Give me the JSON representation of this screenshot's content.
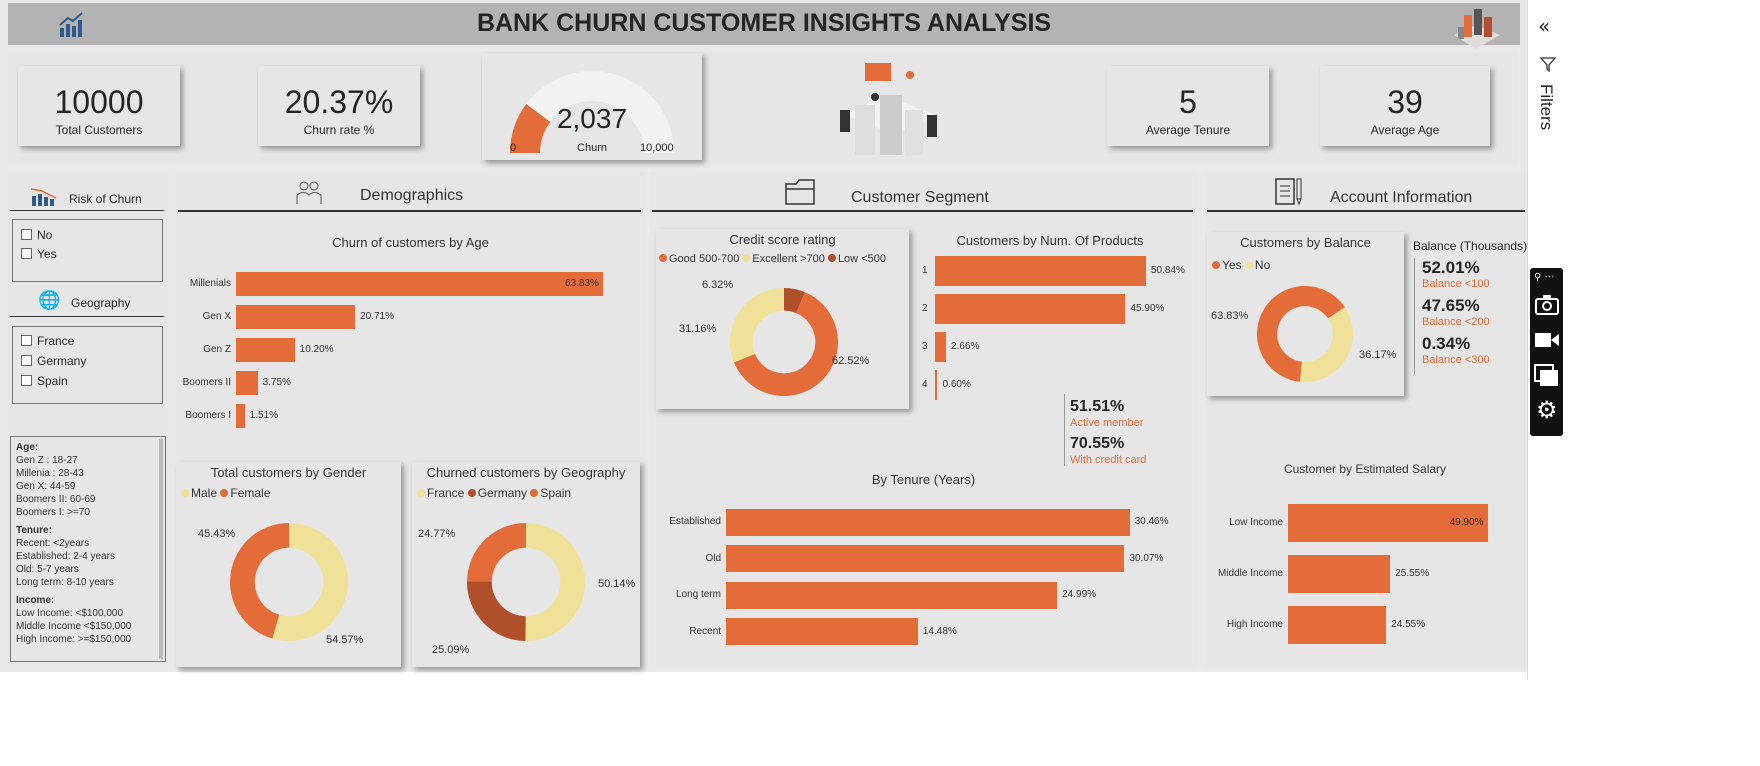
{
  "header": {
    "title": "BANK CHURN CUSTOMER INSIGHTS ANALYSIS"
  },
  "colors": {
    "orange": "#E46C39",
    "yellow": "#F0E199",
    "rust": "#B0502A"
  },
  "kpis": {
    "total_customers": {
      "value": "10000",
      "label": "Total Customers"
    },
    "churn_rate": {
      "value": "20.37%",
      "label": "Churn rate %"
    },
    "gauge": {
      "value": "2,037",
      "label": "Churn",
      "min": "0",
      "max": "10,000",
      "fraction": 0.2037
    },
    "avg_tenure": {
      "value": "5",
      "label": "Average Tenure"
    },
    "avg_age": {
      "value": "39",
      "label": "Average Age"
    }
  },
  "filters_pane": {
    "label": "Filters"
  },
  "slicers": {
    "risk": {
      "title": "Risk of Churn",
      "options": [
        "No",
        "Yes"
      ]
    },
    "geography": {
      "title": "Geography",
      "options": [
        "France",
        "Germany",
        "Spain"
      ]
    }
  },
  "notes": {
    "age_title": "Age:",
    "age": [
      "Gen Z : 18-27",
      "Millenia : 28-43",
      "Gen X: 44-59",
      "Boomers II: 60-69",
      "Boomers I: >=70"
    ],
    "tenure_title": "Tenure:",
    "tenure": [
      "Recent: <2years",
      "Established: 2-4 years",
      "Old: 5-7 years",
      "Long term: 8-10 years"
    ],
    "income_title": "Income:",
    "income": [
      "Low Income: <$100,000",
      "Middle Income <$150,000",
      "High Income: >=$150,000"
    ]
  },
  "sections": {
    "demographics": "Demographics",
    "segment": "Customer Segment",
    "account": "Account Information"
  },
  "chart_data": [
    {
      "id": "age",
      "type": "bar",
      "title": "Churn of customers by Age",
      "categories": [
        "Millenials",
        "Gen X",
        "Gen Z",
        "Boomers II",
        "Boomers I"
      ],
      "values": [
        63.83,
        20.71,
        10.2,
        3.75,
        1.51
      ],
      "labels": [
        "63.83%",
        "20.71%",
        "10.20%",
        "3.75%",
        "1.51%"
      ]
    },
    {
      "id": "gender",
      "type": "pie",
      "title": "Total customers by Gender",
      "legend": [
        "Male",
        "Female"
      ],
      "values": [
        54.57,
        45.43
      ],
      "labels": [
        "54.57%",
        "45.43%"
      ]
    },
    {
      "id": "geo",
      "type": "pie",
      "title": "Churned customers by Geography",
      "legend": [
        "France",
        "Germany",
        "Spain"
      ],
      "values": [
        50.14,
        25.09,
        24.77
      ],
      "labels": [
        "50.14%",
        "25.09%",
        "24.77%"
      ]
    },
    {
      "id": "credit",
      "type": "pie",
      "title": "Credit score rating",
      "legend": [
        "Good 500-700",
        "Excellent >700",
        "Low <500"
      ],
      "values": [
        62.52,
        31.16,
        6.32
      ],
      "labels": [
        "62.52%",
        "31.16%",
        "6.32%"
      ]
    },
    {
      "id": "products",
      "type": "bar",
      "title": "Customers by Num. Of Products",
      "categories": [
        "1",
        "2",
        "3",
        "4"
      ],
      "values": [
        50.84,
        45.9,
        2.66,
        0.6
      ],
      "labels": [
        "50.84%",
        "45.90%",
        "2.66%",
        "0.60%"
      ]
    },
    {
      "id": "tenure",
      "type": "bar",
      "title": "By Tenure (Years)",
      "categories": [
        "Established",
        "Old",
        "Long term",
        "Recent"
      ],
      "values": [
        30.46,
        30.07,
        24.99,
        14.48
      ],
      "labels": [
        "30.46%",
        "30.07%",
        "24.99%",
        "14.48%"
      ]
    },
    {
      "id": "balance",
      "type": "pie",
      "title": "Customers by Balance",
      "legend": [
        "Yes",
        "No"
      ],
      "values": [
        63.83,
        36.17
      ],
      "labels": [
        "63.83%",
        "36.17%"
      ]
    },
    {
      "id": "salary",
      "type": "bar",
      "title": "Customer by Estimated Salary",
      "categories": [
        "Low Income",
        "Middle Income",
        "High Income"
      ],
      "values": [
        49.9,
        25.55,
        24.55
      ],
      "labels": [
        "49.90%",
        "25.55%",
        "24.55%"
      ]
    }
  ],
  "segment_stats": [
    {
      "value": "51.51%",
      "label": "Active member"
    },
    {
      "value": "70.55%",
      "label": "With credit card"
    }
  ],
  "balance_stats": {
    "title": "Balance (Thousands)",
    "items": [
      {
        "value": "52.01%",
        "label": "Balance <100"
      },
      {
        "value": "47.65%",
        "label": "Balance <200"
      },
      {
        "value": "0.34%",
        "label": "Balance <300"
      }
    ]
  }
}
